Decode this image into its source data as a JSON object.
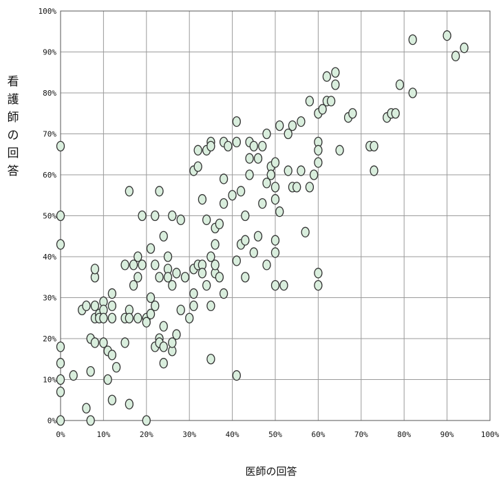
{
  "chart_data": {
    "type": "scatter",
    "xlabel": "医師の回答",
    "ylabel": "看護師の回答",
    "xlim": [
      0,
      100
    ],
    "ylim": [
      0,
      100
    ],
    "x_ticks": [
      "0%",
      "10%",
      "20%",
      "30%",
      "40%",
      "50%",
      "60%",
      "70%",
      "80%",
      "90%",
      "100%"
    ],
    "y_ticks": [
      "0%",
      "10%",
      "20%",
      "30%",
      "40%",
      "50%",
      "60%",
      "70%",
      "80%",
      "90%",
      "100%"
    ],
    "grid": true,
    "marker_color": "#d9eedd",
    "marker_edge": "#333333",
    "points": [
      [
        0,
        67
      ],
      [
        0,
        50
      ],
      [
        0,
        43
      ],
      [
        0,
        18
      ],
      [
        0,
        14
      ],
      [
        0,
        10
      ],
      [
        0,
        7
      ],
      [
        0,
        0
      ],
      [
        3,
        11
      ],
      [
        5,
        27
      ],
      [
        6,
        28
      ],
      [
        6,
        3
      ],
      [
        7,
        12
      ],
      [
        7,
        0
      ],
      [
        7,
        20
      ],
      [
        8,
        35
      ],
      [
        8,
        28
      ],
      [
        8,
        25
      ],
      [
        8,
        19
      ],
      [
        8,
        37
      ],
      [
        9,
        26
      ],
      [
        9,
        25
      ],
      [
        10,
        29
      ],
      [
        10,
        27
      ],
      [
        10,
        25
      ],
      [
        10,
        19
      ],
      [
        11,
        17
      ],
      [
        11,
        10
      ],
      [
        12,
        16
      ],
      [
        12,
        5
      ],
      [
        12,
        31
      ],
      [
        12,
        28
      ],
      [
        12,
        25
      ],
      [
        13,
        13
      ],
      [
        15,
        19
      ],
      [
        15,
        38
      ],
      [
        15,
        25
      ],
      [
        16,
        56
      ],
      [
        16,
        27
      ],
      [
        16,
        25
      ],
      [
        16,
        4
      ],
      [
        17,
        38
      ],
      [
        17,
        33
      ],
      [
        18,
        40
      ],
      [
        18,
        35
      ],
      [
        18,
        25
      ],
      [
        19,
        38
      ],
      [
        19,
        50
      ],
      [
        20,
        25
      ],
      [
        20,
        24
      ],
      [
        20,
        0
      ],
      [
        21,
        42
      ],
      [
        21,
        30
      ],
      [
        21,
        26
      ],
      [
        22,
        50
      ],
      [
        22,
        38
      ],
      [
        22,
        28
      ],
      [
        22,
        18
      ],
      [
        23,
        56
      ],
      [
        23,
        20
      ],
      [
        23,
        19
      ],
      [
        23,
        35
      ],
      [
        24,
        45
      ],
      [
        24,
        14
      ],
      [
        24,
        23
      ],
      [
        24,
        18
      ],
      [
        25,
        40
      ],
      [
        25,
        37
      ],
      [
        25,
        35
      ],
      [
        26,
        50
      ],
      [
        26,
        33
      ],
      [
        26,
        17
      ],
      [
        26,
        19
      ],
      [
        27,
        21
      ],
      [
        27,
        36
      ],
      [
        28,
        49
      ],
      [
        28,
        27
      ],
      [
        29,
        35
      ],
      [
        30,
        25
      ],
      [
        31,
        61
      ],
      [
        31,
        37
      ],
      [
        31,
        31
      ],
      [
        31,
        28
      ],
      [
        32,
        62
      ],
      [
        32,
        66
      ],
      [
        32,
        38
      ],
      [
        33,
        54
      ],
      [
        33,
        38
      ],
      [
        33,
        36
      ],
      [
        34,
        66
      ],
      [
        34,
        49
      ],
      [
        34,
        33
      ],
      [
        35,
        68
      ],
      [
        35,
        67
      ],
      [
        35,
        40
      ],
      [
        35,
        28
      ],
      [
        35,
        15
      ],
      [
        36,
        47
      ],
      [
        36,
        43
      ],
      [
        36,
        36
      ],
      [
        36,
        38
      ],
      [
        37,
        48
      ],
      [
        37,
        35
      ],
      [
        38,
        68
      ],
      [
        38,
        59
      ],
      [
        38,
        53
      ],
      [
        38,
        31
      ],
      [
        39,
        67
      ],
      [
        40,
        55
      ],
      [
        41,
        73
      ],
      [
        41,
        68
      ],
      [
        41,
        39
      ],
      [
        41,
        11
      ],
      [
        42,
        56
      ],
      [
        42,
        43
      ],
      [
        43,
        50
      ],
      [
        43,
        44
      ],
      [
        43,
        35
      ],
      [
        44,
        68
      ],
      [
        44,
        64
      ],
      [
        44,
        60
      ],
      [
        45,
        67
      ],
      [
        45,
        41
      ],
      [
        46,
        64
      ],
      [
        46,
        45
      ],
      [
        47,
        67
      ],
      [
        47,
        53
      ],
      [
        48,
        70
      ],
      [
        48,
        58
      ],
      [
        48,
        38
      ],
      [
        49,
        62
      ],
      [
        49,
        60
      ],
      [
        50,
        63
      ],
      [
        50,
        57
      ],
      [
        50,
        54
      ],
      [
        50,
        44
      ],
      [
        50,
        41
      ],
      [
        50,
        33
      ],
      [
        51,
        72
      ],
      [
        51,
        51
      ],
      [
        52,
        33
      ],
      [
        53,
        70
      ],
      [
        53,
        61
      ],
      [
        54,
        72
      ],
      [
        54,
        57
      ],
      [
        55,
        57
      ],
      [
        56,
        61
      ],
      [
        56,
        73
      ],
      [
        57,
        46
      ],
      [
        58,
        78
      ],
      [
        58,
        57
      ],
      [
        59,
        60
      ],
      [
        60,
        75
      ],
      [
        60,
        68
      ],
      [
        60,
        66
      ],
      [
        60,
        63
      ],
      [
        60,
        36
      ],
      [
        60,
        33
      ],
      [
        61,
        76
      ],
      [
        62,
        84
      ],
      [
        62,
        78
      ],
      [
        63,
        78
      ],
      [
        64,
        82
      ],
      [
        64,
        85
      ],
      [
        65,
        66
      ],
      [
        67,
        74
      ],
      [
        68,
        75
      ],
      [
        72,
        67
      ],
      [
        73,
        67
      ],
      [
        73,
        61
      ],
      [
        76,
        74
      ],
      [
        77,
        75
      ],
      [
        78,
        75
      ],
      [
        79,
        82
      ],
      [
        82,
        93
      ],
      [
        82,
        80
      ],
      [
        90,
        94
      ],
      [
        92,
        89
      ],
      [
        94,
        91
      ]
    ]
  }
}
